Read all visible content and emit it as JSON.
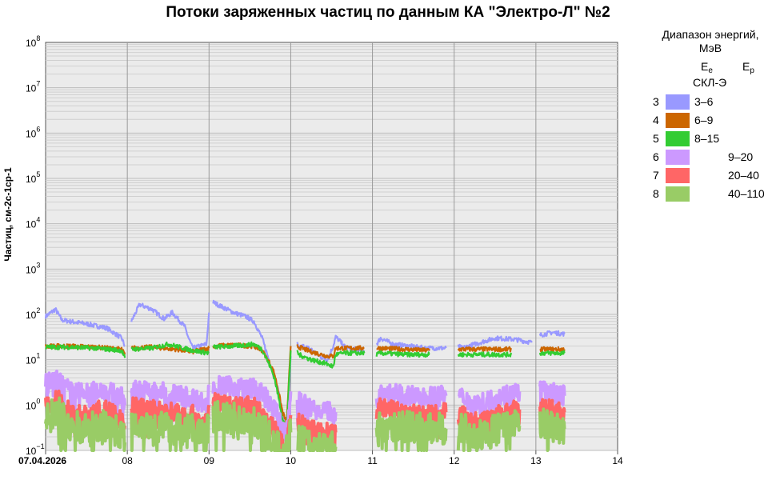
{
  "chart_data": {
    "type": "line",
    "title": "Потоки заряженных частиц по данным КА \"Электро-Л\" №2",
    "ylabel": "Частиц, см-2с-1ср-1",
    "y_scale": "log",
    "ylim": [
      0.1,
      100000000
    ],
    "y_ticks": [
      {
        "base": "10",
        "exp": "8"
      },
      {
        "base": "10",
        "exp": "7"
      },
      {
        "base": "10",
        "exp": "6"
      },
      {
        "base": "10",
        "exp": "5"
      },
      {
        "base": "10",
        "exp": "4"
      },
      {
        "base": "10",
        "exp": "3"
      },
      {
        "base": "10",
        "exp": "2"
      },
      {
        "base": "10",
        "exp": "1"
      },
      {
        "base": "10",
        "exp": "0"
      },
      {
        "base": "10",
        "exp": "−1"
      }
    ],
    "xlim": [
      0,
      7
    ],
    "x_ticks": [
      "07.04.2026",
      "08",
      "09",
      "10",
      "11",
      "12",
      "13",
      "14"
    ],
    "grid": true,
    "legend_position": "right",
    "legend": {
      "title_line1": "Диапазон энергий,",
      "title_line2": "МэВ",
      "col_e": "E",
      "col_e_sub": "e",
      "col_p": "E",
      "col_p_sub": "p",
      "instrument": "СКЛ-Э"
    },
    "series": [
      {
        "channel": "3",
        "range": "3–6",
        "type": "e",
        "color": "#9999ff",
        "x": [
          0,
          0.12,
          0.2,
          0.3,
          0.5,
          0.75,
          0.93,
          0.97,
          1.05,
          1.15,
          1.3,
          1.45,
          1.55,
          1.7,
          1.75,
          1.8,
          1.97,
          2.0,
          2.05,
          2.15,
          2.3,
          2.45,
          2.55,
          2.65,
          2.75,
          2.85,
          2.9,
          2.95,
          3.0,
          3.08,
          3.1,
          3.15,
          3.25,
          3.35,
          3.45,
          3.52,
          3.55,
          3.6,
          3.65,
          3.75,
          3.9,
          4.05,
          4.1,
          4.25,
          4.45,
          4.65,
          4.9,
          5.05,
          5.1,
          5.25,
          5.5,
          5.75,
          5.95,
          6.05,
          6.2,
          6.35
        ],
        "y": [
          90,
          130,
          75,
          70,
          62,
          50,
          30,
          20,
          70,
          165,
          130,
          80,
          110,
          55,
          30,
          18,
          22,
          110,
          185,
          150,
          110,
          90,
          70,
          30,
          8,
          2,
          0.6,
          0.2,
          12,
          22,
          18,
          20,
          17,
          12,
          10,
          20,
          32,
          26,
          20,
          17,
          16,
          22,
          30,
          22,
          20,
          18,
          18,
          20,
          18,
          22,
          30,
          28,
          24,
          35,
          40,
          37
        ]
      },
      {
        "channel": "4",
        "range": "6–9",
        "type": "e",
        "color": "#cc6600",
        "x": [
          0,
          0.3,
          0.6,
          0.93,
          0.97,
          1.05,
          1.3,
          1.6,
          1.8,
          2.0,
          2.05,
          2.3,
          2.55,
          2.65,
          2.75,
          2.8,
          2.85,
          2.9,
          2.95,
          3.0,
          3.08,
          3.1,
          3.25,
          3.45,
          3.52,
          3.55,
          3.65,
          3.9,
          4.05,
          4.1,
          4.4,
          4.7,
          5.05,
          5.1,
          5.4,
          5.7,
          6.05,
          6.35
        ],
        "y": [
          20,
          20,
          19,
          17,
          13,
          18,
          19,
          17,
          15,
          18,
          20,
          21,
          20,
          16,
          8,
          5,
          2,
          0.7,
          0.4,
          20,
          20,
          19,
          15,
          12,
          12,
          18,
          18,
          18,
          18,
          18,
          17,
          16,
          17,
          17,
          17,
          17,
          17,
          17
        ]
      },
      {
        "channel": "5",
        "range": "8–15",
        "type": "e",
        "color": "#33cc33",
        "x": [
          0,
          0.3,
          0.6,
          0.93,
          0.97,
          1.05,
          1.3,
          1.5,
          1.8,
          2.0,
          2.05,
          2.3,
          2.55,
          2.65,
          2.75,
          2.8,
          2.85,
          2.9,
          2.95,
          3.0,
          3.08,
          3.1,
          3.25,
          3.45,
          3.52,
          3.55,
          3.65,
          3.9,
          4.05,
          4.1,
          4.4,
          4.7,
          5.05,
          5.1,
          5.4,
          5.7,
          6.05,
          6.35
        ],
        "y": [
          19,
          19,
          18,
          16,
          11,
          17,
          18,
          22,
          16,
          14,
          19,
          20,
          22,
          17,
          7,
          4,
          1.5,
          0.5,
          0.3,
          16,
          15,
          13,
          10,
          8,
          7,
          13,
          14,
          14,
          13,
          14,
          13,
          13,
          13,
          13,
          13,
          13,
          14,
          14
        ]
      },
      {
        "channel": "6",
        "range": "9–20",
        "type": "p",
        "color": "#cc99ff",
        "x": [
          0,
          0.15,
          0.3,
          0.5,
          0.7,
          0.93,
          0.97,
          1.05,
          1.3,
          1.55,
          1.8,
          1.97,
          2.0,
          2.05,
          2.3,
          2.55,
          2.7,
          2.8,
          2.88,
          2.95,
          3.0,
          3.08,
          3.1,
          3.2,
          3.4,
          3.55,
          4.05,
          4.1,
          4.3,
          4.6,
          4.9,
          5.05,
          5.1,
          5.3,
          5.55,
          5.8,
          6.05,
          6.35
        ],
        "y": [
          3,
          3.5,
          2,
          1.8,
          2.2,
          1.5,
          1,
          2.2,
          2,
          1.8,
          1.5,
          1,
          2.5,
          2.8,
          2.5,
          2.3,
          1.5,
          0.8,
          0.4,
          0.2,
          2,
          1.5,
          1.2,
          1,
          0.8,
          0.7,
          1.2,
          2,
          1.7,
          1.5,
          1.6,
          1.5,
          1.5,
          1,
          1.6,
          2,
          2.2,
          1.6
        ]
      },
      {
        "channel": "7",
        "range": "20–40",
        "type": "p",
        "color": "#ff6666",
        "x": [
          0,
          0.15,
          0.3,
          0.5,
          0.7,
          0.93,
          0.97,
          1.05,
          1.3,
          1.55,
          1.8,
          1.97,
          2.0,
          2.05,
          2.3,
          2.55,
          2.7,
          2.8,
          2.88,
          2.95,
          3.0,
          3.08,
          3.1,
          3.2,
          3.4,
          3.55,
          4.05,
          4.1,
          4.3,
          4.6,
          4.9,
          5.05,
          5.1,
          5.3,
          5.55,
          5.8,
          6.05,
          6.35
        ],
        "y": [
          1,
          1.3,
          0.7,
          0.6,
          0.8,
          0.5,
          0.35,
          0.9,
          0.8,
          0.7,
          0.6,
          0.4,
          1,
          1.1,
          1,
          0.9,
          0.5,
          0.3,
          0.15,
          0.1,
          0.6,
          0.45,
          0.4,
          0.3,
          0.25,
          0.25,
          0.5,
          0.9,
          0.7,
          0.6,
          0.7,
          0.6,
          0.6,
          0.4,
          0.6,
          0.8,
          0.9,
          0.7
        ]
      },
      {
        "channel": "8",
        "range": "40–110",
        "type": "p",
        "color": "#99cc66",
        "x": [
          0,
          0.15,
          0.3,
          0.5,
          0.7,
          0.93,
          0.97,
          1.05,
          1.3,
          1.55,
          1.8,
          1.97,
          2.0,
          2.05,
          2.3,
          2.55,
          2.7,
          2.8,
          2.88,
          2.95,
          3.0,
          3.08,
          3.1,
          3.2,
          3.4,
          3.55,
          4.05,
          4.1,
          4.3,
          4.6,
          4.9,
          5.05,
          5.1,
          5.3,
          5.55,
          5.8,
          6.05,
          6.35
        ],
        "y": [
          0.5,
          0.7,
          0.35,
          0.3,
          0.35,
          0.25,
          0.15,
          0.4,
          0.35,
          0.3,
          0.3,
          0.2,
          0.5,
          0.55,
          0.5,
          0.45,
          0.25,
          0.13,
          0.1,
          0.1,
          0.25,
          0.2,
          0.18,
          0.14,
          0.12,
          0.12,
          0.2,
          0.4,
          0.35,
          0.3,
          0.3,
          0.28,
          0.3,
          0.2,
          0.3,
          0.35,
          0.4,
          0.3
        ]
      }
    ]
  }
}
